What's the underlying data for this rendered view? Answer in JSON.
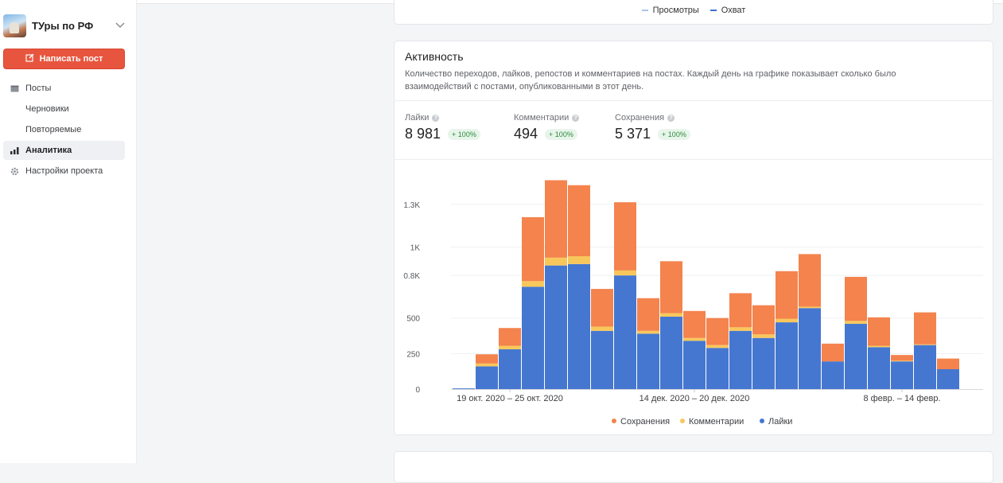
{
  "sidebar": {
    "project_name": "ТУры по РФ",
    "new_post_label": "Написать пост",
    "items": [
      {
        "label": "Посты"
      },
      {
        "label": "Черновики"
      },
      {
        "label": "Повторяемые"
      },
      {
        "label": "Аналитика"
      },
      {
        "label": "Настройки проекта"
      }
    ]
  },
  "top_card": {
    "legend": [
      {
        "label": "Просмотры",
        "color": "#a9c4ea"
      },
      {
        "label": "Охват",
        "color": "#3f6fd1"
      }
    ]
  },
  "activity": {
    "title": "Активность",
    "description": "Количество переходов, лайков, репостов и комментариев на постах. Каждый день на графике показывает сколько было взаимодействий с постами, опубликованными в этот день.",
    "metrics": [
      {
        "label": "Лайки",
        "value": "8 981",
        "change": "+ 100%"
      },
      {
        "label": "Комментарии",
        "value": "494",
        "change": "+ 100%"
      },
      {
        "label": "Сохранения",
        "value": "5 371",
        "change": "+ 100%"
      }
    ]
  },
  "chart_data": {
    "type": "bar",
    "stacked": true,
    "y_ticks": [
      "0",
      "250",
      "500",
      "0.8K",
      "1K",
      "1.3K"
    ],
    "ylim": [
      0,
      1400
    ],
    "x_tick_labels": [
      "19 окт. 2020 – 25 окт. 2020",
      "14 дек. 2020 – 20 дек. 2020",
      "8 февр. – 14 февр."
    ],
    "x_tick_positions": [
      2,
      10,
      19
    ],
    "series": [
      {
        "name": "Лайки",
        "color": "#4577d1",
        "values": [
          5,
          160,
          280,
          720,
          870,
          880,
          410,
          800,
          390,
          510,
          340,
          290,
          410,
          360,
          470,
          570,
          195,
          460,
          295,
          195,
          310,
          140
        ]
      },
      {
        "name": "Комментарии",
        "color": "#f8c75b",
        "values": [
          0,
          20,
          25,
          40,
          55,
          55,
          30,
          35,
          20,
          25,
          20,
          20,
          25,
          25,
          25,
          10,
          0,
          20,
          10,
          5,
          5,
          0
        ]
      },
      {
        "name": "Сохранения",
        "color": "#f4834d",
        "values": [
          0,
          65,
          125,
          450,
          545,
          500,
          265,
          480,
          230,
          365,
          190,
          190,
          240,
          205,
          335,
          370,
          125,
          310,
          200,
          40,
          225,
          75
        ]
      }
    ],
    "legend_order": [
      "Сохранения",
      "Комментарии",
      "Лайки"
    ],
    "legend_position": "bottom",
    "grid": true
  }
}
